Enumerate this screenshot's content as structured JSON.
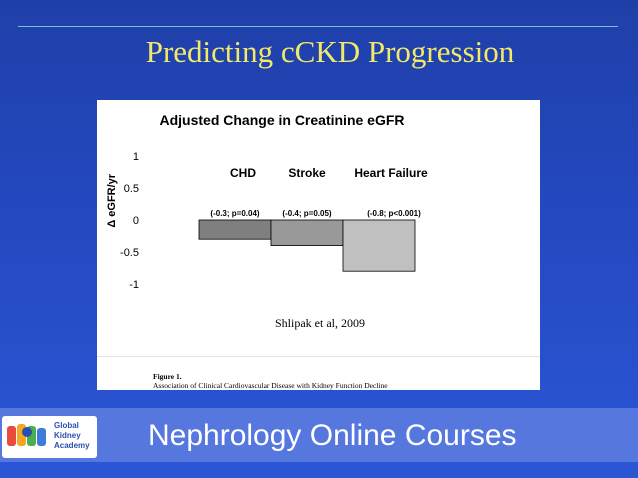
{
  "slide": {
    "title": "Predicting cCKD Progression",
    "footer_title": "Nephrology Online Courses",
    "logo_lines": [
      "Global",
      "Kidney",
      "Academy"
    ]
  },
  "citation": "Shlipak et al, 2009",
  "figure_caption": {
    "label": "Figure 1.",
    "text": "Association of Clinical Cardiovascular Disease with Kidney Function Decline"
  },
  "chart_data": {
    "type": "bar",
    "title": "Adjusted Change in Creatinine eGFR",
    "ylabel": "Δ eGFR/yr",
    "ylim": [
      -1,
      1
    ],
    "yticks": [
      1,
      0.5,
      0,
      -0.5,
      -1
    ],
    "ytick_labels": [
      "1",
      "0.5",
      "0",
      "-0.5",
      "-1"
    ],
    "grid": false,
    "categories": [
      "CHD",
      "Stroke",
      "Heart Failure"
    ],
    "values": [
      -0.3,
      -0.4,
      -0.8
    ],
    "annotations": [
      "(-0.3; p=0.04)",
      "(-0.4; p=0.05)",
      "(-0.8; p<0.001)"
    ],
    "colors": [
      "#7f7f7f",
      "#999999",
      "#c0c0c0"
    ]
  },
  "colors": {
    "background": "#2449c0",
    "title": "#f2e86a",
    "footer_bar": "#5577de"
  }
}
